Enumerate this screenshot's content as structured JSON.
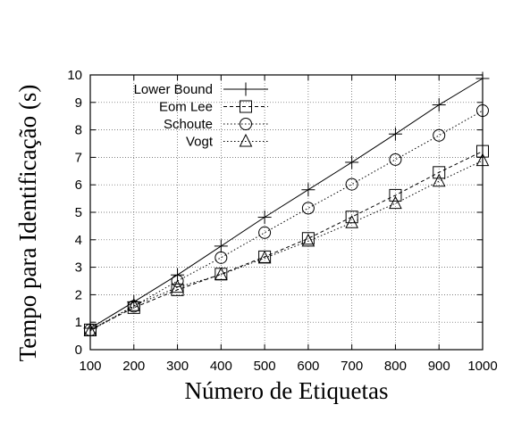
{
  "chart_data": {
    "type": "line",
    "title": "",
    "xlabel": "Número de Etiquetas",
    "ylabel": "Tempo para Identificação (s)",
    "x": [
      100,
      200,
      300,
      400,
      500,
      600,
      700,
      800,
      900,
      1000
    ],
    "xlim": [
      100,
      1000
    ],
    "ylim": [
      0,
      10
    ],
    "xticks": [
      "100",
      "200",
      "300",
      "400",
      "500",
      "600",
      "700",
      "800",
      "900",
      "1000"
    ],
    "yticks": [
      "0",
      "1",
      "2",
      "3",
      "4",
      "5",
      "6",
      "7",
      "8",
      "9",
      "10"
    ],
    "grid": "dotted",
    "legend_position": "top-left",
    "series": [
      {
        "name": "Lower Bound",
        "marker": "plus",
        "line": "solid",
        "values": [
          0.78,
          1.74,
          2.72,
          3.77,
          4.82,
          5.82,
          6.82,
          7.85,
          8.91,
          9.87
        ]
      },
      {
        "name": "Eom Lee",
        "marker": "square",
        "line": "dashed",
        "values": [
          0.72,
          1.53,
          2.18,
          2.75,
          3.38,
          4.05,
          4.83,
          5.62,
          6.45,
          7.22
        ]
      },
      {
        "name": "Schoute",
        "marker": "circle",
        "line": "dotted",
        "values": [
          0.72,
          1.58,
          2.5,
          3.35,
          4.26,
          5.15,
          6.02,
          6.92,
          7.8,
          8.7
        ]
      },
      {
        "name": "Vogt",
        "marker": "triangle",
        "line": "dotted",
        "values": [
          0.68,
          1.6,
          2.27,
          2.73,
          3.33,
          3.95,
          4.62,
          5.32,
          6.13,
          6.88
        ]
      }
    ]
  }
}
